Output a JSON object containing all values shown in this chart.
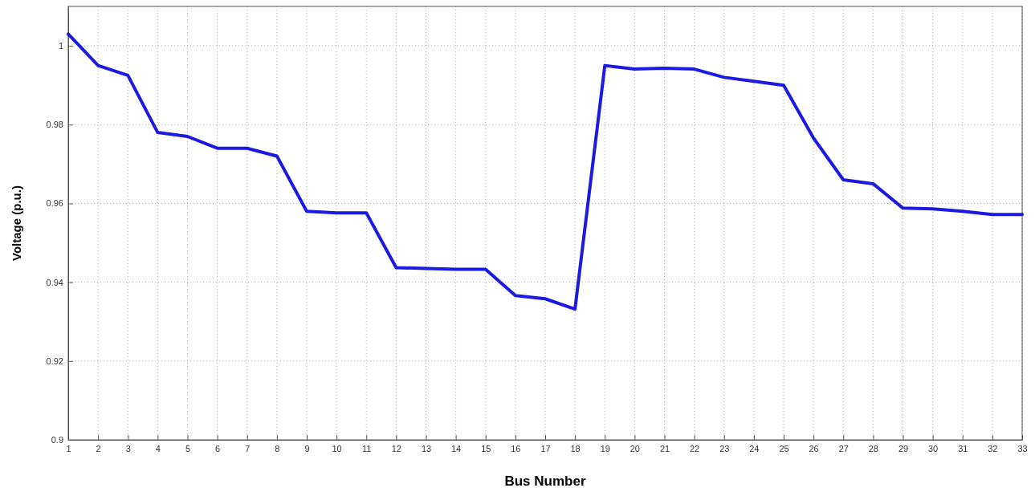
{
  "chart_data": {
    "type": "line",
    "xlabel": "Bus Number",
    "ylabel": "Voltage (p.u.)",
    "x": [
      1,
      2,
      3,
      4,
      5,
      6,
      7,
      8,
      9,
      10,
      11,
      12,
      13,
      14,
      15,
      16,
      17,
      18,
      19,
      20,
      21,
      22,
      23,
      24,
      25,
      26,
      27,
      28,
      29,
      30,
      31,
      32,
      33
    ],
    "series": [
      {
        "color": "#1a1ae0",
        "values": [
          1.003,
          0.995,
          0.9925,
          0.978,
          0.977,
          0.974,
          0.974,
          0.972,
          0.958,
          0.9576,
          0.9576,
          0.9437,
          0.9435,
          0.9433,
          0.9433,
          0.9366,
          0.9358,
          0.9332,
          0.995,
          0.9941,
          0.9943,
          0.9941,
          0.992,
          0.991,
          0.99,
          0.9766,
          0.966,
          0.965,
          0.9588,
          0.9586,
          0.958,
          0.9572,
          0.9572
        ]
      }
    ],
    "xlim": [
      1,
      33
    ],
    "xticks": [
      1,
      2,
      3,
      4,
      5,
      6,
      7,
      8,
      9,
      10,
      11,
      12,
      13,
      14,
      15,
      16,
      17,
      18,
      19,
      20,
      21,
      22,
      23,
      24,
      25,
      26,
      27,
      28,
      29,
      30,
      31,
      32,
      33
    ],
    "ylim": [
      0.9,
      1.01
    ],
    "yticks": [
      0.9,
      0.92,
      0.94,
      0.96,
      0.98,
      1
    ],
    "grid": true,
    "line_style": "solid"
  }
}
